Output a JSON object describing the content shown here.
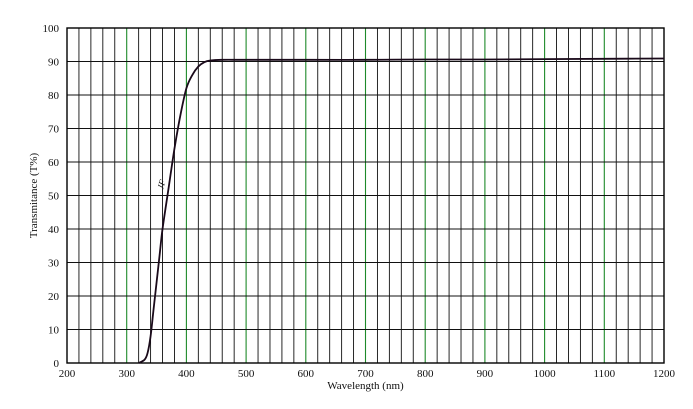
{
  "chart_data": {
    "type": "line",
    "title": "",
    "xlabel": "Wavelength (nm)",
    "ylabel": "Transmitance (T%)",
    "xlim": [
      200,
      1200
    ],
    "ylim": [
      0,
      100
    ],
    "x_ticks": [
      200,
      300,
      400,
      500,
      600,
      700,
      800,
      900,
      1000,
      1100,
      1200
    ],
    "y_ticks": [
      0,
      10,
      20,
      30,
      40,
      50,
      60,
      70,
      80,
      90,
      100
    ],
    "grid": true,
    "series": [
      {
        "name": "JF",
        "x": [
          320,
          330,
          335,
          340,
          345,
          350,
          355,
          360,
          370,
          380,
          390,
          400,
          410,
          420,
          430,
          440,
          460,
          500,
          600,
          700,
          800,
          900,
          1000,
          1100,
          1200
        ],
        "y": [
          0,
          1,
          3,
          8,
          16,
          24,
          32,
          40,
          52,
          64,
          74,
          82,
          86,
          88.5,
          89.8,
          90.3,
          90.5,
          90.5,
          90.5,
          90.5,
          90.6,
          90.6,
          90.7,
          90.8,
          90.9
        ]
      }
    ],
    "colors": {
      "major_grid": "#1e8a2a",
      "minor_grid": "#111111",
      "curve": "#1a0a1a"
    }
  }
}
